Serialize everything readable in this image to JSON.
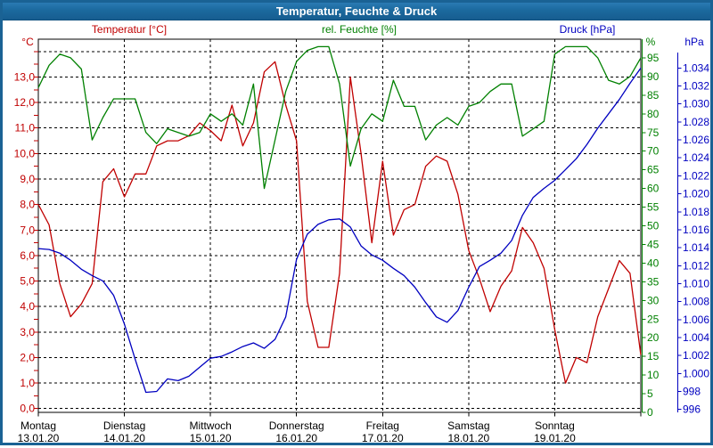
{
  "window": {
    "title": "Temperatur, Feuchte & Druck"
  },
  "axes": {
    "temperature": {
      "title": "Temperatur [°C]",
      "unit": "°C",
      "color": "#c00000",
      "range": [
        0,
        14
      ],
      "grid_step": 1,
      "tick_labels": [
        "0,0",
        "1,0",
        "2,0",
        "3,0",
        "4,0",
        "5,0",
        "6,0",
        "7,0",
        "8,0",
        "9,0",
        "10,0",
        "11,0",
        "12,0",
        "13,0"
      ]
    },
    "humidity": {
      "title": "rel. Feuchte [%]",
      "unit": "%",
      "color": "#008000",
      "range": [
        0,
        100
      ],
      "tick_step": 5,
      "tick_labels": [
        "0",
        "5",
        "10",
        "15",
        "20",
        "25",
        "30",
        "35",
        "40",
        "45",
        "50",
        "55",
        "60",
        "65",
        "70",
        "75",
        "80",
        "85",
        "90",
        "95"
      ]
    },
    "pressure": {
      "title": "Druck [hPa]",
      "unit": "hPa",
      "color": "#0000c0",
      "range": [
        996,
        1034
      ],
      "tick_step": 2,
      "tick_labels": [
        "996",
        "998",
        "1.000",
        "1.002",
        "1.004",
        "1.006",
        "1.008",
        "1.010",
        "1.012",
        "1.014",
        "1.016",
        "1.018",
        "1.020",
        "1.022",
        "1.024",
        "1.026",
        "1.028",
        "1.030",
        "1.032",
        "1.034"
      ]
    }
  },
  "x_axis": {
    "days": [
      {
        "name": "Montag",
        "date": "13.01.20"
      },
      {
        "name": "Dienstag",
        "date": "14.01.20"
      },
      {
        "name": "Mittwoch",
        "date": "15.01.20"
      },
      {
        "name": "Donnerstag",
        "date": "16.01.20"
      },
      {
        "name": "Freitag",
        "date": "17.01.20"
      },
      {
        "name": "Samstag",
        "date": "18.01.20"
      },
      {
        "name": "Sonntag",
        "date": "19.01.20"
      }
    ]
  },
  "chart_data": {
    "type": "line",
    "title": "Temperatur, Feuchte & Druck",
    "x_start": "Montag 13.01.20 00:00",
    "x_step_hours": 3,
    "x_total_hours": 168,
    "grid": "dashed",
    "legend_position": "top",
    "series": [
      {
        "name": "Temperatur [°C]",
        "axis": "temperature",
        "color": "#c00000",
        "values": [
          8.0,
          7.2,
          4.9,
          3.6,
          4.1,
          4.9,
          8.9,
          9.4,
          8.3,
          9.2,
          9.2,
          10.3,
          10.5,
          10.5,
          10.7,
          11.2,
          10.9,
          10.5,
          11.9,
          10.3,
          11.2,
          13.2,
          13.6,
          11.9,
          10.5,
          4.2,
          2.4,
          2.4,
          5.3,
          13.0,
          10.0,
          6.5,
          9.7,
          6.8,
          7.8,
          8.0,
          9.5,
          9.9,
          9.7,
          8.4,
          6.2,
          5.1,
          3.8,
          4.8,
          5.4,
          7.1,
          6.5,
          5.5,
          3.1,
          1.0,
          2.0,
          1.8,
          3.6,
          4.7,
          5.8,
          5.3,
          2.1
        ]
      },
      {
        "name": "rel. Feuchte [%]",
        "axis": "humidity",
        "color": "#008000",
        "values": [
          87,
          93,
          96,
          95,
          92,
          73,
          79,
          84,
          84,
          84,
          75,
          72,
          76,
          75,
          74,
          75,
          80,
          78,
          80,
          77,
          88,
          60,
          73,
          86,
          94,
          97,
          98,
          98,
          88,
          66,
          76,
          80,
          78,
          89,
          82,
          82,
          73,
          77,
          79,
          77,
          82,
          83,
          86,
          88,
          88,
          74,
          76,
          78,
          96,
          98,
          98,
          98,
          95,
          89,
          88,
          90,
          95
        ]
      },
      {
        "name": "Druck [hPa]",
        "axis": "pressure",
        "color": "#0000c0",
        "values": [
          1013.9,
          1013.8,
          1013.4,
          1012.6,
          1011.6,
          1010.9,
          1010.3,
          1008.7,
          1005.5,
          1001.6,
          997.9,
          998.0,
          999.4,
          999.2,
          999.7,
          1000.7,
          1001.7,
          1001.9,
          1002.4,
          1003.0,
          1003.4,
          1002.8,
          1003.8,
          1006.3,
          1012.7,
          1015.5,
          1016.6,
          1017.1,
          1017.2,
          1016.3,
          1014.2,
          1013.2,
          1012.6,
          1011.7,
          1010.9,
          1009.6,
          1007.9,
          1006.3,
          1005.7,
          1007.0,
          1009.6,
          1011.9,
          1012.6,
          1013.4,
          1014.8,
          1017.6,
          1019.6,
          1020.6,
          1021.5,
          1022.7,
          1023.9,
          1025.5,
          1027.3,
          1028.9,
          1030.5,
          1032.3,
          1034.0
        ]
      }
    ]
  }
}
